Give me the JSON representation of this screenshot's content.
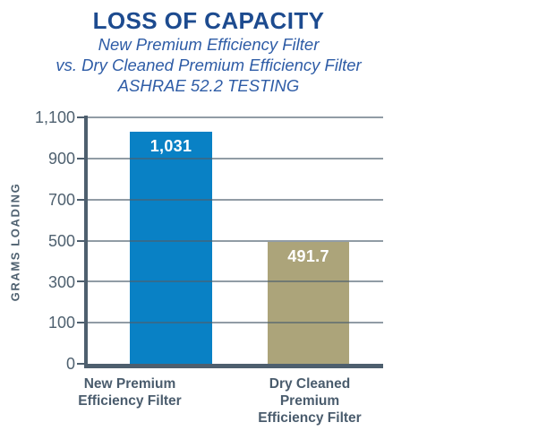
{
  "header": {
    "title": "LOSS OF CAPACITY",
    "subtitle_line1": "New Premium Efficiency Filter",
    "subtitle_line2": "vs. Dry Cleaned Premium Efficiency Filter",
    "subtitle_line3": "ASHRAE 52.2 TESTING"
  },
  "chart_data": {
    "type": "bar",
    "title": "LOSS OF CAPACITY",
    "subtitle": [
      "New Premium Efficiency Filter",
      "vs. Dry Cleaned Premium Efficiency Filter",
      "ASHRAE 52.2 TESTING"
    ],
    "ylabel": "GRAMS LOADING",
    "categories": [
      "New Premium\nEfficiency Filter",
      "Dry Cleaned\nPremium\nEfficiency Filter"
    ],
    "values": [
      1031,
      491.7
    ],
    "value_labels": [
      "1,031",
      "491.7"
    ],
    "bar_colors": [
      "#0981c5",
      "#aca47a"
    ],
    "ytick_values": [
      0,
      100,
      300,
      500,
      700,
      900,
      1100
    ],
    "ytick_labels_top_to_bottom": [
      "1,100",
      "900",
      "700",
      "500",
      "300",
      "100",
      "0"
    ],
    "ylim": [
      0,
      1100
    ],
    "grid": true,
    "legend": "none",
    "note_axis": "tick marks evenly spaced; values interpolated piecewise between ticks"
  },
  "colors": {
    "title_navy": "#1d4b8f",
    "subtitle_blue": "#2e5ca6",
    "axis_slate": "#4e5f6e",
    "tick_text": "#4f6170",
    "category_text": "#4a5c6d",
    "bar_blue": "#0981c5",
    "bar_tan": "#aca47a",
    "bar_value_text": "#ffffff",
    "background": "#ffffff"
  }
}
